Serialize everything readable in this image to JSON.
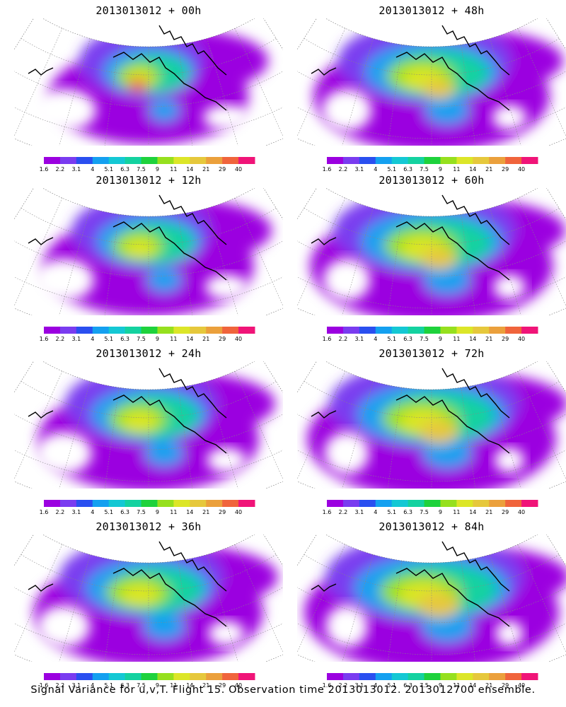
{
  "panels": [
    {
      "title": "2013013012 + 00h",
      "lead": 0,
      "intensity": 0.35
    },
    {
      "title": "2013013012 + 48h",
      "lead": 48,
      "intensity": 0.78
    },
    {
      "title": "2013013012 + 12h",
      "lead": 12,
      "intensity": 0.48
    },
    {
      "title": "2013013012 + 60h",
      "lead": 60,
      "intensity": 0.86
    },
    {
      "title": "2013013012 + 24h",
      "lead": 24,
      "intensity": 0.6
    },
    {
      "title": "2013013012 + 72h",
      "lead": 72,
      "intensity": 0.93
    },
    {
      "title": "2013013012 + 36h",
      "lead": 36,
      "intensity": 0.7
    },
    {
      "title": "2013013012 + 84h",
      "lead": 84,
      "intensity": 1.0
    }
  ],
  "colorbar": {
    "labels": [
      "1.6",
      "2.2",
      "3.1",
      "4",
      "5.1",
      "6.3",
      "7.5",
      "9",
      "11",
      "14",
      "21",
      "29",
      "40"
    ],
    "colors": [
      "#9b00e0",
      "#7a3cf0",
      "#2a4ff0",
      "#14a0f0",
      "#14c8d4",
      "#14d2a0",
      "#1ed23c",
      "#96e01e",
      "#dce628",
      "#e6c83c",
      "#eba03c",
      "#f0643c",
      "#f01478"
    ]
  },
  "footer": "Signal Variance for u,v,T. Flight 15. Observation time 2013013012. 2013012700 ensemble."
}
